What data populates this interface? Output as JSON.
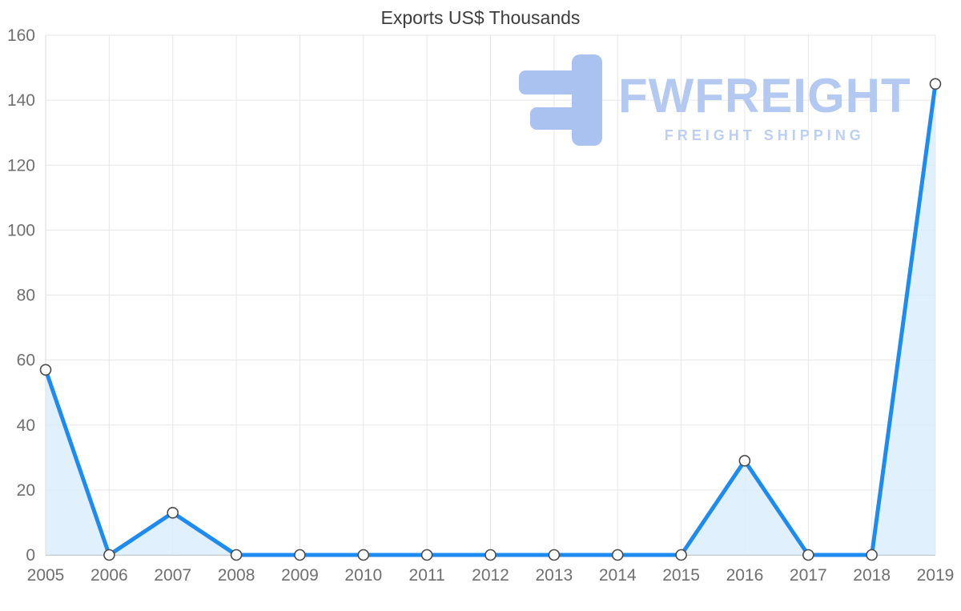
{
  "title": "Exports US$ Thousands",
  "watermark": {
    "brand": "FWFREIGHT",
    "tagline": "FREIGHT SHIPPING",
    "logo_color": "#a9c2ef",
    "text_color": "#b3c9f1"
  },
  "chart_data": {
    "type": "area",
    "title": "Exports US$ Thousands",
    "categories": [
      "2005",
      "2006",
      "2007",
      "2008",
      "2009",
      "2010",
      "2011",
      "2012",
      "2013",
      "2014",
      "2015",
      "2016",
      "2017",
      "2018",
      "2019"
    ],
    "series": [
      {
        "name": "Exports US$ Thousands",
        "values": [
          57,
          0,
          13,
          0,
          0,
          0,
          0,
          0,
          0,
          0,
          0,
          29,
          0,
          0,
          145
        ]
      }
    ],
    "xlabel": "",
    "ylabel": "",
    "ylim": [
      0,
      160
    ],
    "ytick_step": 20,
    "grid": true,
    "legend": "none",
    "colors": {
      "line": "#1e8bf0",
      "area": "#d9ecfc",
      "marker_fill": "#ffffff",
      "marker_stroke": "#4a4a4a",
      "grid": "#e7e7e7",
      "axis": "#b8b8b8",
      "left_axis": "#d9d9d9",
      "tick_label": "#6f6f6f",
      "title": "#3d3d3d"
    }
  }
}
